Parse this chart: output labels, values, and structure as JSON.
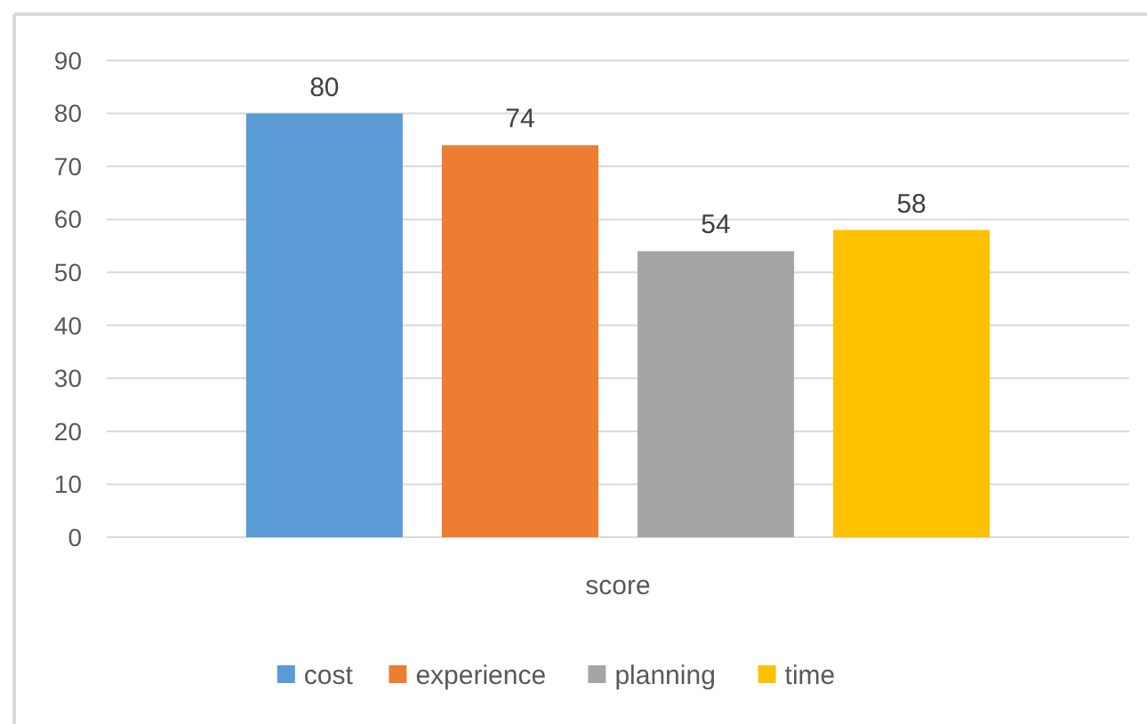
{
  "chart_data": {
    "type": "bar",
    "categories": [
      "score"
    ],
    "series": [
      {
        "name": "cost",
        "color": "#5b9bd5",
        "values": [
          80
        ]
      },
      {
        "name": "experience",
        "color": "#ed7d31",
        "values": [
          74
        ]
      },
      {
        "name": "planning",
        "color": "#a5a5a5",
        "values": [
          54
        ]
      },
      {
        "name": "time",
        "color": "#ffc000",
        "values": [
          58
        ]
      }
    ],
    "ylim": [
      0,
      90
    ],
    "yticks": [
      0,
      10,
      20,
      30,
      40,
      50,
      60,
      70,
      80,
      90
    ],
    "grid": "y",
    "legend": "bottom",
    "data_labels": true
  }
}
